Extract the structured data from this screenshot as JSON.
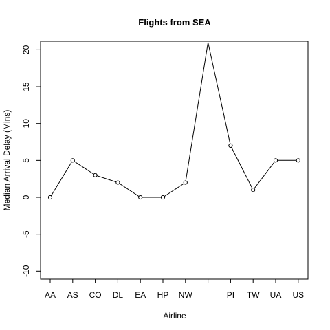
{
  "chart_data": {
    "type": "line",
    "title": "Flights from SEA",
    "xlabel": "Airline",
    "ylabel": "Median Arrival Delay (Mins)",
    "categories": [
      "AA",
      "AS",
      "CO",
      "DL",
      "EA",
      "HP",
      "NW",
      "",
      "PI",
      "TW",
      "UA",
      "US"
    ],
    "values": [
      0,
      5,
      3,
      2,
      0,
      0,
      2,
      21,
      7,
      1,
      5,
      5
    ],
    "markers": [
      true,
      true,
      true,
      true,
      true,
      true,
      true,
      false,
      true,
      true,
      true,
      true
    ],
    "ylim": [
      -11,
      21
    ],
    "yticks": [
      -10,
      -5,
      0,
      5,
      10,
      15,
      20
    ],
    "grid": false,
    "legend": "none",
    "colors": {
      "line": "#000000",
      "marker_fill": "#ffffff",
      "frame": "#000000"
    }
  }
}
